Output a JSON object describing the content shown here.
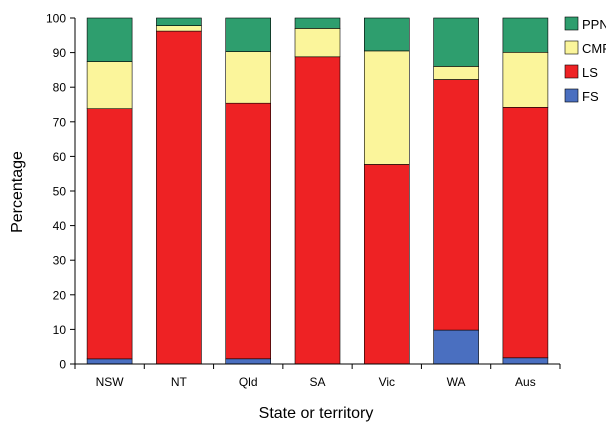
{
  "chart_data": {
    "type": "bar",
    "stacked": true,
    "categories": [
      "NSW",
      "NT",
      "Qld",
      "SA",
      "Vic",
      "WA",
      "Aus"
    ],
    "series": [
      {
        "name": "FS",
        "color": "#4a6fc0",
        "values": [
          1.5,
          0,
          1.5,
          0,
          0,
          9.8,
          1.8
        ]
      },
      {
        "name": "LS",
        "color": "#ee2224",
        "values": [
          72.3,
          96.2,
          73.9,
          88.8,
          57.7,
          72.4,
          72.4
        ]
      },
      {
        "name": "CMRP",
        "color": "#fbf59b",
        "values": [
          13.6,
          1.6,
          14.9,
          8.2,
          32.8,
          3.8,
          15.9
        ]
      },
      {
        "name": "PPNG",
        "color": "#2e9e6e",
        "values": [
          12.6,
          2.2,
          9.7,
          3.0,
          9.5,
          14.0,
          9.9
        ]
      }
    ],
    "legend_order": [
      "PPNG",
      "CMRP",
      "LS",
      "FS"
    ],
    "legend_position": "right",
    "xlabel": "State or territory",
    "ylabel": "Percentage",
    "ylim": [
      0,
      100
    ],
    "yticks": [
      0,
      10,
      20,
      30,
      40,
      50,
      60,
      70,
      80,
      90,
      100
    ],
    "grid": false
  }
}
